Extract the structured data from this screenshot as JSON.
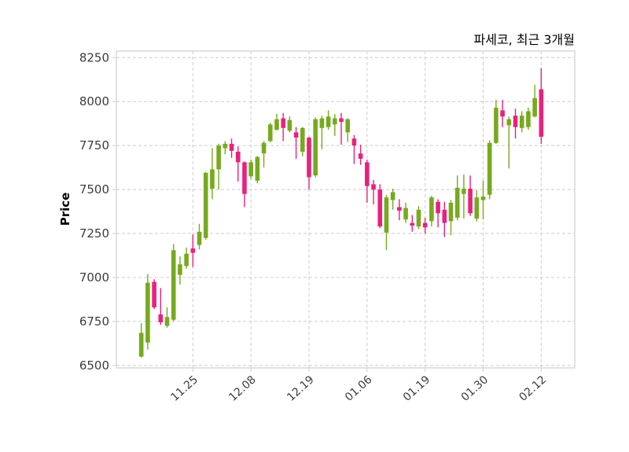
{
  "title": "파세코, 최근 3개월",
  "y_axis": {
    "label": "Price",
    "ticks": [
      "8250",
      "8000",
      "7750",
      "7500",
      "7250",
      "7000",
      "6750",
      "6500"
    ]
  },
  "x_axis": {
    "tick_labels": [
      "11.25",
      "12.08",
      "12.19",
      "01.06",
      "01.19",
      "01.30",
      "02.12"
    ]
  },
  "colors": {
    "up": "#76aa1e",
    "down": "#e8217e",
    "grid": "#cccccc",
    "frame": "#dadada",
    "text": "#3d3d3d",
    "title_text": "#3c3c3c"
  },
  "chart_data": {
    "type": "candlestick",
    "title": "파세코, 최근 3개월",
    "xlabel": "",
    "ylabel": "Price",
    "ylim": [
      6486,
      8287
    ],
    "grid": "dashed, both axes",
    "legend": "none",
    "y_tick_values": [
      8250,
      8000,
      7750,
      7500,
      7250,
      7000,
      6750,
      6500
    ],
    "x_tick_labels": [
      "11.25",
      "12.08",
      "12.19",
      "01.06",
      "01.19",
      "01.30",
      "02.12"
    ],
    "x_tick_candle_indices": [
      8,
      17,
      26,
      35,
      44,
      53,
      62
    ],
    "candles_format": [
      "open",
      "high",
      "low",
      "close"
    ],
    "candles": [
      [
        6550,
        6740,
        6545,
        6685
      ],
      [
        6630,
        7020,
        6590,
        6970
      ],
      [
        6975,
        6990,
        6820,
        6830
      ],
      [
        6790,
        6940,
        6730,
        6745
      ],
      [
        6725,
        6830,
        6715,
        6775
      ],
      [
        6760,
        7190,
        6750,
        7155
      ],
      [
        7015,
        7120,
        6960,
        7075
      ],
      [
        7065,
        7170,
        7050,
        7135
      ],
      [
        7165,
        7245,
        7060,
        7140
      ],
      [
        7185,
        7305,
        7160,
        7260
      ],
      [
        7225,
        7600,
        7215,
        7595
      ],
      [
        7505,
        7735,
        7445,
        7615
      ],
      [
        7615,
        7760,
        7500,
        7750
      ],
      [
        7735,
        7775,
        7700,
        7760
      ],
      [
        7760,
        7790,
        7680,
        7720
      ],
      [
        7715,
        7745,
        7545,
        7655
      ],
      [
        7655,
        7660,
        7400,
        7475
      ],
      [
        7575,
        7670,
        7560,
        7655
      ],
      [
        7550,
        7690,
        7535,
        7685
      ],
      [
        7705,
        7775,
        7625,
        7765
      ],
      [
        7775,
        7880,
        7770,
        7870
      ],
      [
        7840,
        7930,
        7835,
        7900
      ],
      [
        7905,
        7935,
        7775,
        7850
      ],
      [
        7835,
        7915,
        7825,
        7895
      ],
      [
        7825,
        7855,
        7675,
        7795
      ],
      [
        7715,
        7855,
        7690,
        7850
      ],
      [
        7795,
        7800,
        7500,
        7570
      ],
      [
        7580,
        7910,
        7570,
        7900
      ],
      [
        7850,
        7920,
        7730,
        7905
      ],
      [
        7855,
        7950,
        7840,
        7915
      ],
      [
        7870,
        7930,
        7805,
        7905
      ],
      [
        7905,
        7935,
        7755,
        7885
      ],
      [
        7825,
        7905,
        7770,
        7900
      ],
      [
        7790,
        7810,
        7645,
        7750
      ],
      [
        7705,
        7755,
        7640,
        7675
      ],
      [
        7655,
        7670,
        7425,
        7520
      ],
      [
        7530,
        7555,
        7415,
        7500
      ],
      [
        7500,
        7530,
        7280,
        7290
      ],
      [
        7255,
        7470,
        7155,
        7455
      ],
      [
        7440,
        7505,
        7385,
        7485
      ],
      [
        7400,
        7445,
        7325,
        7380
      ],
      [
        7330,
        7425,
        7310,
        7395
      ],
      [
        7310,
        7355,
        7260,
        7295
      ],
      [
        7290,
        7405,
        7275,
        7385
      ],
      [
        7310,
        7340,
        7250,
        7285
      ],
      [
        7320,
        7465,
        7290,
        7455
      ],
      [
        7430,
        7445,
        7285,
        7365
      ],
      [
        7385,
        7430,
        7230,
        7310
      ],
      [
        7320,
        7440,
        7240,
        7425
      ],
      [
        7340,
        7580,
        7325,
        7510
      ],
      [
        7475,
        7585,
        7335,
        7505
      ],
      [
        7505,
        7580,
        7350,
        7365
      ],
      [
        7335,
        7495,
        7320,
        7455
      ],
      [
        7440,
        7550,
        7330,
        7460
      ],
      [
        7470,
        7780,
        7445,
        7765
      ],
      [
        7765,
        8010,
        7760,
        7965
      ],
      [
        7950,
        8010,
        7855,
        7915
      ],
      [
        7865,
        7915,
        7620,
        7900
      ],
      [
        7920,
        7960,
        7790,
        7855
      ],
      [
        7850,
        7945,
        7825,
        7920
      ],
      [
        7855,
        7965,
        7840,
        7945
      ],
      [
        7915,
        8095,
        7910,
        8020
      ],
      [
        8070,
        8190,
        7760,
        7800
      ]
    ]
  }
}
